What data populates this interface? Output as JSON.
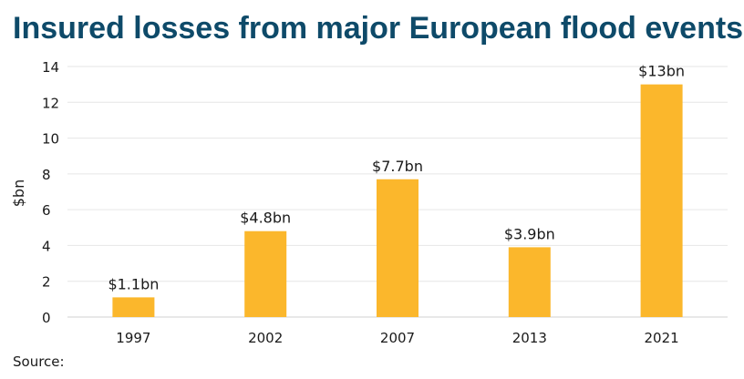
{
  "chart_data": {
    "type": "bar",
    "title": "Insured losses from major European flood events",
    "xlabel": "",
    "ylabel": "$bn",
    "categories": [
      "1997",
      "2002",
      "2007",
      "2013",
      "2021"
    ],
    "values": [
      1.1,
      4.8,
      7.7,
      3.9,
      13
    ],
    "data_labels": [
      "$1.1bn",
      "$4.8bn",
      "$7.7bn",
      "$3.9bn",
      "$13bn"
    ],
    "ylim": [
      0,
      14
    ],
    "yticks": [
      0,
      2,
      4,
      6,
      8,
      10,
      12,
      14
    ],
    "grid": true,
    "bar_color": "#fbb72c",
    "grid_color": "#e6e6e6",
    "title_color": "#0e4a69"
  },
  "footer": {
    "source_label": "Source:"
  }
}
